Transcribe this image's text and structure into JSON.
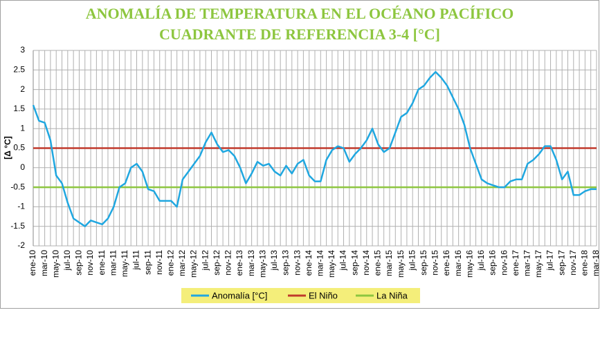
{
  "chart_data": {
    "type": "line",
    "title": "ANOMALÍA DE TEMPERATURA EN EL OCÉANO PACÍFICO",
    "subtitle": "CUADRANTE DE REFERENCIA 3-4 [°C]",
    "y_label": "[Δ °C]",
    "categories": [
      "ene-10",
      null,
      "mar-10",
      null,
      "may-10",
      null,
      "jul-10",
      null,
      "sep-10",
      null,
      "nov-10",
      null,
      "ene-11",
      null,
      "mar-11",
      null,
      "may-11",
      null,
      "jul-11",
      null,
      "sep-11",
      null,
      "nov-11",
      null,
      "ene-12",
      null,
      "mar-12",
      null,
      "may-12",
      null,
      "jul-12",
      null,
      "sep-12",
      null,
      "nov-12",
      null,
      "ene-13",
      null,
      "mar-13",
      null,
      "may-13",
      null,
      "jul-13",
      null,
      "sep-13",
      null,
      "nov-13",
      null,
      "ene-14",
      null,
      "mar-14",
      null,
      "may-14",
      null,
      "jul-14",
      null,
      "sep-14",
      null,
      "nov-14",
      null,
      "ene-15",
      null,
      "mar-15",
      null,
      "may-15",
      null,
      "jul-15",
      null,
      "sep-15",
      null,
      "nov-15",
      null,
      "ene-16",
      null,
      "mar-16",
      null,
      "may-16",
      null,
      "jul-16",
      null,
      "sep-16",
      null,
      "nov-16",
      null,
      "ene-17",
      null,
      "mar-17",
      null,
      "may-17",
      null,
      "jul-17",
      null,
      "sep-17",
      null,
      "nov-17",
      null,
      "ene-18",
      null,
      "mar-18"
    ],
    "series": [
      {
        "name": "Anomalía [°C]",
        "color": "#1fa7e0",
        "values": [
          1.6,
          1.2,
          1.15,
          0.7,
          -0.2,
          -0.4,
          -0.9,
          -1.3,
          -1.4,
          -1.5,
          -1.35,
          -1.4,
          -1.45,
          -1.3,
          -1.0,
          -0.5,
          -0.4,
          0.0,
          0.1,
          -0.1,
          -0.55,
          -0.6,
          -0.85,
          -0.85,
          -0.85,
          -1.0,
          -0.3,
          -0.1,
          0.1,
          0.3,
          0.65,
          0.9,
          0.6,
          0.4,
          0.45,
          0.3,
          0.0,
          -0.4,
          -0.15,
          0.15,
          0.05,
          0.1,
          -0.1,
          -0.2,
          0.05,
          -0.15,
          0.1,
          0.2,
          -0.2,
          -0.35,
          -0.35,
          0.2,
          0.45,
          0.55,
          0.5,
          0.15,
          0.35,
          0.5,
          0.7,
          1.0,
          0.6,
          0.4,
          0.5,
          0.9,
          1.3,
          1.4,
          1.65,
          2.0,
          2.1,
          2.3,
          2.45,
          2.3,
          2.1,
          1.8,
          1.5,
          1.1,
          0.5,
          0.1,
          -0.3,
          -0.4,
          -0.45,
          -0.5,
          -0.5,
          -0.35,
          -0.3,
          -0.3,
          0.1,
          0.2,
          0.35,
          0.55,
          0.55,
          0.2,
          -0.3,
          -0.1,
          -0.7,
          -0.7,
          -0.6,
          -0.55,
          -0.55
        ]
      }
    ],
    "reference_lines": [
      {
        "name": "El Niño",
        "value": 0.5,
        "color": "#c0392b"
      },
      {
        "name": "La Niña",
        "value": -0.5,
        "color": "#8dc63f"
      }
    ],
    "ylim": [
      -2,
      3
    ],
    "yticks": [
      -2,
      -1.5,
      -1,
      -0.5,
      0,
      0.5,
      1,
      1.5,
      2,
      2.5,
      3
    ],
    "grid": true,
    "legend": "bottom"
  }
}
